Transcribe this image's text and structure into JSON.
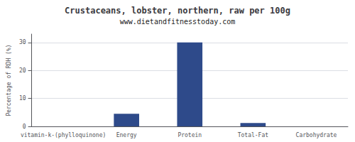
{
  "chart_data": {
    "type": "bar",
    "title": "Crustaceans, lobster, northern, raw per 100g",
    "subtitle": "www.dietandfitnesstoday.com",
    "categories": [
      "vitamin-k-(phylloquinone)",
      "Energy",
      "Protein",
      "Total-Fat",
      "Carbohydrate"
    ],
    "values": [
      0,
      4.5,
      30,
      1.2,
      0
    ],
    "color": "#2e4a8a",
    "ylabel": "Percentage of RDH (%)",
    "ylim": [
      0,
      33
    ],
    "yticks": [
      0,
      10,
      20,
      30
    ],
    "grid": true
  }
}
